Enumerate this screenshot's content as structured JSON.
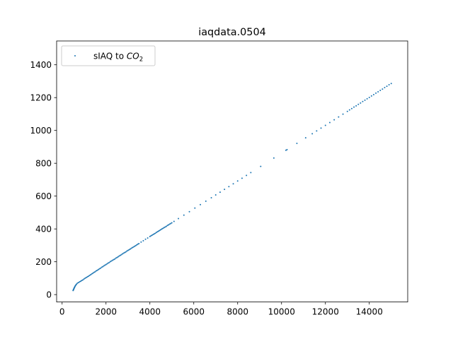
{
  "chart_data": {
    "type": "scatter",
    "title": "iaqdata.0504",
    "xlabel": "",
    "ylabel": "",
    "xlim": [
      -250,
      15750
    ],
    "ylim": [
      -45,
      1545
    ],
    "xticks": [
      0,
      2000,
      4000,
      6000,
      8000,
      10000,
      12000,
      14000
    ],
    "yticks": [
      0,
      200,
      400,
      600,
      800,
      1000,
      1200,
      1400
    ],
    "xtick_labels": [
      "0",
      "2000",
      "4000",
      "6000",
      "8000",
      "10000",
      "12000",
      "14000"
    ],
    "ytick_labels": [
      "0",
      "200",
      "400",
      "600",
      "800",
      "1000",
      "1200",
      "1400"
    ],
    "grid": false,
    "legend_position": "upper-left",
    "series": [
      {
        "name": "sIAQ to CO2",
        "name_base": "sIAQ to CO",
        "name_sub": "2",
        "color": "#1f77b4",
        "marker": "dot",
        "x": [
          500,
          510,
          520,
          530,
          540,
          550,
          560,
          575,
          590,
          610,
          630,
          660,
          700,
          750,
          800,
          850,
          900,
          950,
          1000,
          1050,
          1100,
          1150,
          1200,
          1250,
          1300,
          1350,
          1400,
          1450,
          1500,
          1550,
          1600,
          1650,
          1700,
          1750,
          1800,
          1850,
          1900,
          1950,
          2000,
          2050,
          2100,
          2150,
          2200,
          2250,
          2300,
          2350,
          2400,
          2450,
          2500,
          2550,
          2600,
          2650,
          2700,
          2750,
          2800,
          2850,
          2900,
          2950,
          3000,
          3050,
          3100,
          3150,
          3200,
          3250,
          3300,
          3350,
          3400,
          3450,
          3500,
          3600,
          3700,
          3800,
          3900,
          4000,
          4050,
          4100,
          4150,
          4200,
          4250,
          4300,
          4350,
          4400,
          4450,
          4500,
          4550,
          4600,
          4650,
          4700,
          4750,
          4800,
          4850,
          4900,
          4950,
          5000,
          5100,
          5300,
          5550,
          5800,
          6050,
          6300,
          6550,
          6800,
          7000,
          7200,
          7400,
          7600,
          7800,
          8000,
          8200,
          8400,
          8600,
          9050,
          9650,
          10200,
          10250,
          10700,
          11100,
          11400,
          11600,
          11800,
          12000,
          12200,
          12400,
          12600,
          12800,
          13000,
          13100,
          13200,
          13300,
          13400,
          13500,
          13600,
          13700,
          13800,
          13900,
          14000,
          14100,
          14200,
          14300,
          14400,
          14500,
          14600,
          14700,
          14800,
          14900,
          15000
        ],
        "y": [
          25,
          28,
          31,
          34,
          37,
          40,
          43,
          47,
          51,
          55,
          59,
          64,
          70,
          74,
          78,
          82,
          86,
          90,
          95,
          100,
          104,
          108,
          112,
          117,
          121,
          126,
          130,
          135,
          139,
          144,
          148,
          152,
          157,
          161,
          166,
          170,
          175,
          179,
          183,
          188,
          192,
          196,
          201,
          205,
          209,
          213,
          217,
          222,
          226,
          230,
          235,
          239,
          243,
          248,
          252,
          256,
          260,
          265,
          269,
          273,
          277,
          282,
          286,
          290,
          294,
          298,
          303,
          307,
          311,
          320,
          328,
          337,
          345,
          354,
          358,
          362,
          366,
          370,
          374,
          379,
          383,
          387,
          391,
          396,
          400,
          404,
          408,
          412,
          416,
          421,
          425,
          429,
          433,
          437,
          446,
          463,
          484,
          505,
          527,
          548,
          569,
          590,
          607,
          624,
          641,
          658,
          675,
          692,
          709,
          726,
          743,
          781,
          832,
          879,
          883,
          921,
          955,
          980,
          997,
          1014,
          1031,
          1048,
          1065,
          1082,
          1099,
          1116,
          1125,
          1133,
          1142,
          1150,
          1159,
          1167,
          1176,
          1184,
          1193,
          1201,
          1210,
          1218,
          1227,
          1235,
          1244,
          1252,
          1261,
          1269,
          1278,
          1286
        ]
      }
    ]
  }
}
